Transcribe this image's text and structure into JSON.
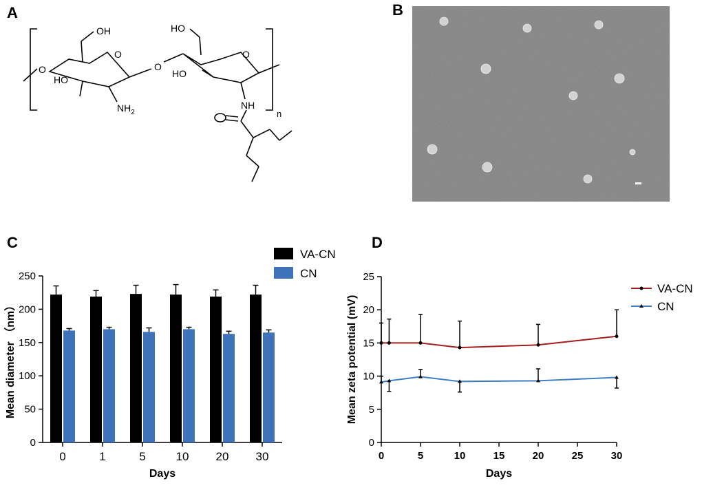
{
  "panels": {
    "a": "A",
    "b": "B",
    "c": "C",
    "d": "D"
  },
  "structure": {
    "labels": {
      "oh": "OH",
      "ho_left": "HO",
      "ho_top": "HO",
      "ho_right": "HO",
      "o_ring_left": "O",
      "o_ring_right": "O",
      "o_link_left": "O",
      "o_link_mid": "O",
      "nh2": "NH",
      "nh2_sub": "2",
      "nh": "NH",
      "n_sub": "n",
      "carbonyl_o": "O"
    }
  },
  "micrograph": {
    "background": "#7f7f7f",
    "particle_color": "#d2d2d2",
    "particles": [
      {
        "id": "p1"
      },
      {
        "id": "p2"
      },
      {
        "id": "p3"
      },
      {
        "id": "p4"
      },
      {
        "id": "p5"
      },
      {
        "id": "p6"
      },
      {
        "id": "p7"
      },
      {
        "id": "p8"
      },
      {
        "id": "p9"
      },
      {
        "id": "p10"
      }
    ]
  },
  "colors": {
    "black_series": "#000000",
    "blue_series": "#3f73b9",
    "red_line": "#a51c1c",
    "blue_line": "#3f7ec4"
  },
  "chart_data": [
    {
      "id": "C",
      "type": "bar",
      "title": "",
      "xlabel": "Days",
      "ylabel": "Mean diameter （nm）",
      "categories": [
        "0",
        "1",
        "5",
        "10",
        "20",
        "30"
      ],
      "ylim": [
        0,
        250
      ],
      "yticks": [
        0,
        50,
        100,
        150,
        200,
        250
      ],
      "legend_position": "top-right",
      "series": [
        {
          "name": "VA-CN",
          "color": "#000000",
          "values": [
            222,
            219,
            223,
            222,
            219,
            222
          ],
          "errors": [
            13,
            9,
            13,
            15,
            10,
            14
          ]
        },
        {
          "name": "CN",
          "color": "#3f73b9",
          "values": [
            168,
            170,
            166,
            170,
            163,
            165
          ],
          "errors": [
            3,
            3,
            6,
            3,
            4,
            4
          ]
        }
      ]
    },
    {
      "id": "D",
      "type": "line",
      "title": "",
      "xlabel": "Days",
      "ylabel": "Mean zeta potential (mV)",
      "xlim": [
        0,
        30
      ],
      "ylim": [
        0,
        25
      ],
      "xticks": [
        0,
        5,
        10,
        15,
        20,
        25,
        30
      ],
      "yticks": [
        0,
        5,
        10,
        15,
        20,
        25
      ],
      "legend_position": "top-right",
      "series": [
        {
          "name": "VA-CN",
          "color": "#a51c1c",
          "marker": "circle",
          "x": [
            0,
            1,
            5,
            10,
            20,
            30
          ],
          "y": [
            15.0,
            15.0,
            15.0,
            14.3,
            14.7,
            16.0
          ],
          "errors": [
            3.0,
            3.6,
            4.3,
            4.0,
            3.1,
            4.0
          ]
        },
        {
          "name": "CN",
          "color": "#3f7ec4",
          "marker": "triangle",
          "x": [
            0,
            1,
            5,
            10,
            20,
            30
          ],
          "y": [
            9.1,
            9.3,
            9.9,
            9.2,
            9.3,
            9.8
          ],
          "errors": [
            0.9,
            1.6,
            1.1,
            1.6,
            1.8,
            1.6
          ]
        }
      ]
    }
  ]
}
